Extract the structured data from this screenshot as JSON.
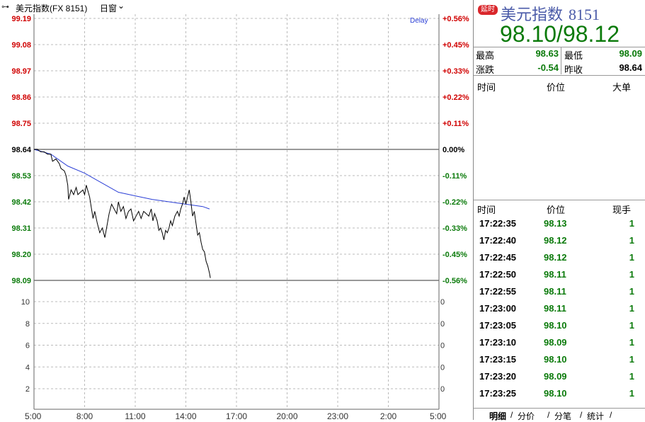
{
  "toolbar": {
    "link_icon": "⊶",
    "symbol": "美元指数(FX 8151)",
    "period": "日窗",
    "chevron": "⌄"
  },
  "chart_data": {
    "type": "line",
    "price_ticks": [
      "99.19",
      "99.08",
      "98.97",
      "98.86",
      "98.75",
      "98.64",
      "98.53",
      "98.42",
      "98.31",
      "98.20",
      "98.09"
    ],
    "pct_ticks": [
      "+0.56%",
      "+0.45%",
      "+0.33%",
      "+0.22%",
      "+0.11%",
      "0.00%",
      "-0.11%",
      "-0.22%",
      "-0.33%",
      "-0.45%",
      "-0.56%"
    ],
    "volume_ticks_left": [
      "10",
      "8",
      "6",
      "4",
      "2"
    ],
    "volume_ticks_right": [
      "0",
      "0",
      "0",
      "0",
      "0"
    ],
    "time_ticks": [
      "5:00",
      "8:00",
      "11:00",
      "14:00",
      "17:00",
      "20:00",
      "23:00",
      "2:00",
      "5:00"
    ],
    "delay_label": "Delay",
    "ylim": [
      98.09,
      99.19
    ],
    "prev_close": 98.64,
    "hours_span": 24,
    "price_series": [
      [
        0,
        98.64
      ],
      [
        0.2,
        98.64
      ],
      [
        0.4,
        98.63
      ],
      [
        0.6,
        98.63
      ],
      [
        0.8,
        98.62
      ],
      [
        1.0,
        98.62
      ],
      [
        1.1,
        98.59
      ],
      [
        1.3,
        98.6
      ],
      [
        1.5,
        98.58
      ],
      [
        1.6,
        98.56
      ],
      [
        1.8,
        98.55
      ],
      [
        1.9,
        98.53
      ],
      [
        2.0,
        98.49
      ],
      [
        2.05,
        98.43
      ],
      [
        2.2,
        98.47
      ],
      [
        2.35,
        98.45
      ],
      [
        2.5,
        98.48
      ],
      [
        2.6,
        98.45
      ],
      [
        2.75,
        98.46
      ],
      [
        2.9,
        98.47
      ],
      [
        3.0,
        98.45
      ],
      [
        3.1,
        98.49
      ],
      [
        3.3,
        98.44
      ],
      [
        3.5,
        98.35
      ],
      [
        3.6,
        98.38
      ],
      [
        3.75,
        98.33
      ],
      [
        3.9,
        98.29
      ],
      [
        4.05,
        98.31
      ],
      [
        4.2,
        98.27
      ],
      [
        4.35,
        98.33
      ],
      [
        4.45,
        98.37
      ],
      [
        4.6,
        98.41
      ],
      [
        4.75,
        98.39
      ],
      [
        4.9,
        98.37
      ],
      [
        5.0,
        98.42
      ],
      [
        5.15,
        98.38
      ],
      [
        5.3,
        98.4
      ],
      [
        5.45,
        98.35
      ],
      [
        5.6,
        98.38
      ],
      [
        5.75,
        98.39
      ],
      [
        5.9,
        98.34
      ],
      [
        6.05,
        98.36
      ],
      [
        6.2,
        98.38
      ],
      [
        6.35,
        98.35
      ],
      [
        6.5,
        98.38
      ],
      [
        6.65,
        98.37
      ],
      [
        6.8,
        98.36
      ],
      [
        6.95,
        98.39
      ],
      [
        7.05,
        98.34
      ],
      [
        7.15,
        98.37
      ],
      [
        7.3,
        98.34
      ],
      [
        7.4,
        98.3
      ],
      [
        7.5,
        98.31
      ],
      [
        7.6,
        98.29
      ],
      [
        7.7,
        98.26
      ],
      [
        7.8,
        98.3
      ],
      [
        7.9,
        98.29
      ],
      [
        8.0,
        98.31
      ],
      [
        8.1,
        98.34
      ],
      [
        8.2,
        98.32
      ],
      [
        8.35,
        98.36
      ],
      [
        8.5,
        98.38
      ],
      [
        8.6,
        98.36
      ],
      [
        8.7,
        98.39
      ],
      [
        8.8,
        98.41
      ],
      [
        8.9,
        98.44
      ],
      [
        9.0,
        98.41
      ],
      [
        9.1,
        98.44
      ],
      [
        9.2,
        98.47
      ],
      [
        9.3,
        98.42
      ],
      [
        9.4,
        98.36
      ],
      [
        9.5,
        98.38
      ],
      [
        9.6,
        98.33
      ],
      [
        9.7,
        98.28
      ],
      [
        9.8,
        98.29
      ],
      [
        9.9,
        98.25
      ],
      [
        10.0,
        98.22
      ],
      [
        10.1,
        98.21
      ],
      [
        10.2,
        98.17
      ],
      [
        10.3,
        98.15
      ],
      [
        10.4,
        98.12
      ],
      [
        10.45,
        98.1
      ]
    ],
    "avg_series": [
      [
        0,
        98.64
      ],
      [
        1.0,
        98.62
      ],
      [
        2.0,
        98.57
      ],
      [
        3.0,
        98.54
      ],
      [
        4.0,
        98.5
      ],
      [
        5.0,
        98.46
      ],
      [
        6.0,
        98.445
      ],
      [
        7.0,
        98.43
      ],
      [
        8.0,
        98.42
      ],
      [
        9.0,
        98.41
      ],
      [
        10.0,
        98.4
      ],
      [
        10.4,
        98.39
      ]
    ]
  },
  "panel": {
    "badge": "延时",
    "name": "美元指数",
    "code": "8151",
    "price": "98.10/98.12",
    "labels": {
      "high": "最高",
      "low": "最低",
      "change": "涨跌",
      "prev": "昨收"
    },
    "values": {
      "high": "98.63",
      "low": "98.09",
      "change": "-0.54",
      "prev": "98.64"
    },
    "colors": {
      "high": "#0a7a0a",
      "low": "#0a7a0a",
      "change": "#0a7a0a",
      "prev": "#000000"
    },
    "big_header": [
      "时间",
      "价位",
      "大单"
    ],
    "trade_header": [
      "时间",
      "价位",
      "现手"
    ],
    "trades": [
      {
        "time": "17:22:35",
        "price": "98.13",
        "qty": "1"
      },
      {
        "time": "17:22:40",
        "price": "98.12",
        "qty": "1"
      },
      {
        "time": "17:22:45",
        "price": "98.12",
        "qty": "1"
      },
      {
        "time": "17:22:50",
        "price": "98.11",
        "qty": "1"
      },
      {
        "time": "17:22:55",
        "price": "98.11",
        "qty": "1"
      },
      {
        "time": "17:23:00",
        "price": "98.11",
        "qty": "1"
      },
      {
        "time": "17:23:05",
        "price": "98.10",
        "qty": "1"
      },
      {
        "time": "17:23:10",
        "price": "98.09",
        "qty": "1"
      },
      {
        "time": "17:23:15",
        "price": "98.10",
        "qty": "1"
      },
      {
        "time": "17:23:20",
        "price": "98.09",
        "qty": "1"
      },
      {
        "time": "17:23:25",
        "price": "98.10",
        "qty": "1"
      }
    ],
    "tabs": [
      "明细",
      "分价",
      "分笔",
      "统计"
    ]
  }
}
